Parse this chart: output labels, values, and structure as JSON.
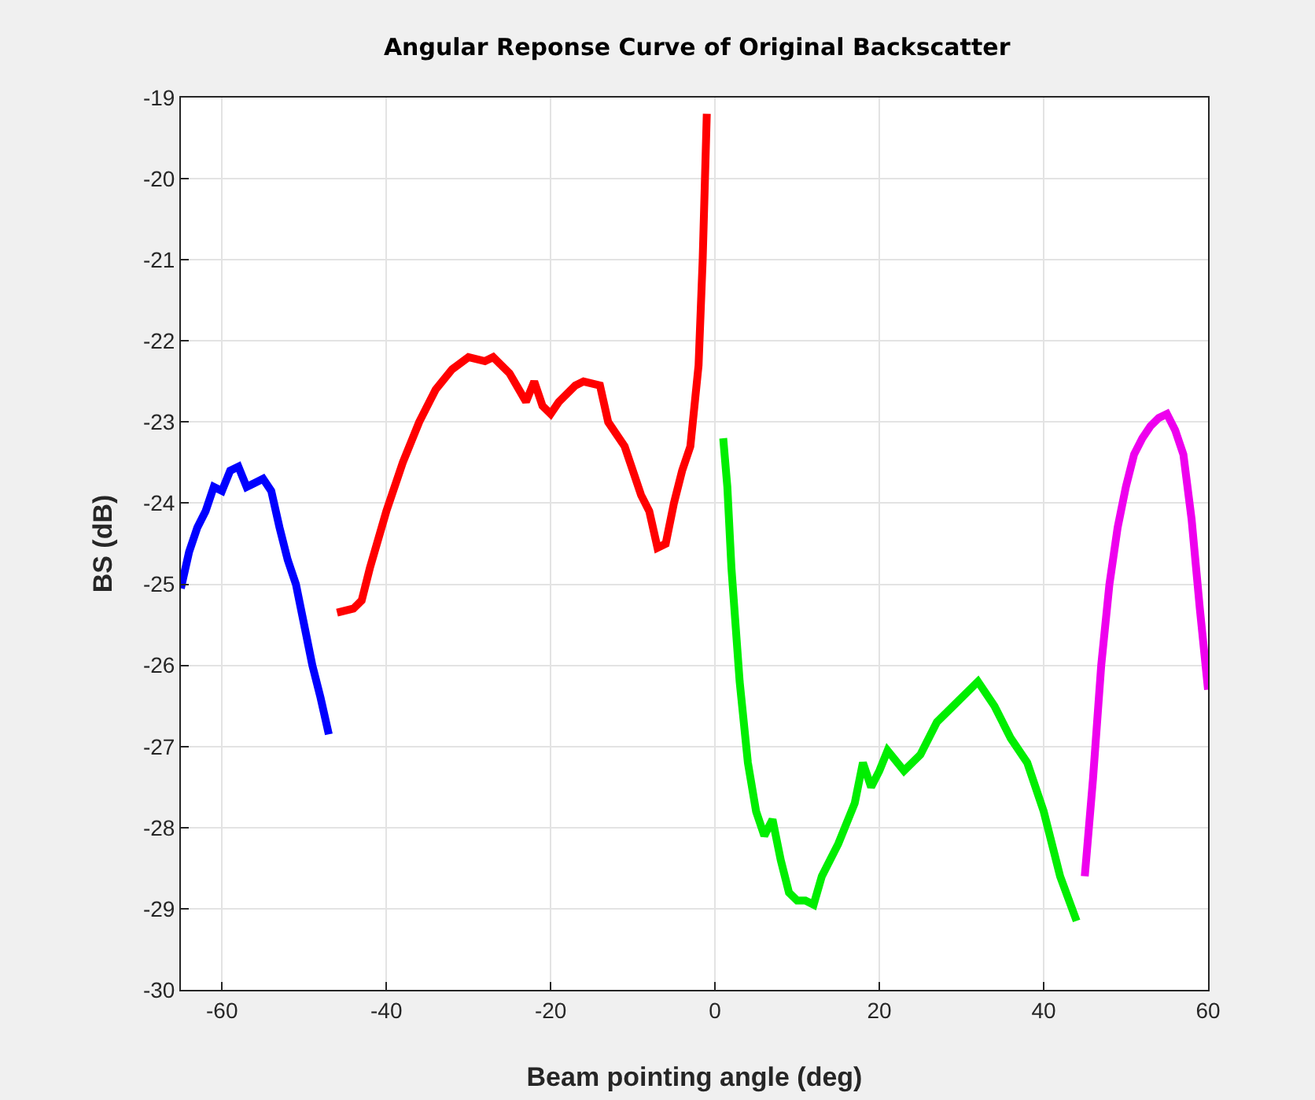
{
  "chart_data": {
    "type": "line",
    "title": "Angular Reponse Curve of Original Backscatter",
    "xlabel": "Beam pointing angle (deg)",
    "ylabel": "BS (dB)",
    "xlim": [
      -65,
      60
    ],
    "xticks": [
      -60,
      -40,
      -20,
      0,
      20,
      40,
      60
    ],
    "ylim": [
      -30,
      -19
    ],
    "yticks": [
      -30,
      -29,
      -28,
      -27,
      -26,
      -25,
      -24,
      -23,
      -22,
      -21,
      -20,
      -19
    ],
    "grid": true,
    "marker": "none",
    "line_style": "solid",
    "series": [
      {
        "color": "#0000ff",
        "x": [
          -65,
          -64,
          -63,
          -62,
          -61,
          -60,
          -59,
          -58,
          -57,
          -56,
          -55,
          -54,
          -53,
          -52,
          -51,
          -50,
          -49,
          -48,
          -47
        ],
        "values": [
          -25.05,
          -24.6,
          -24.3,
          -24.1,
          -23.8,
          -23.85,
          -23.6,
          -23.55,
          -23.8,
          -23.75,
          -23.7,
          -23.85,
          -24.3,
          -24.7,
          -25.0,
          -25.5,
          -26.0,
          -26.4,
          -26.85
        ]
      },
      {
        "color": "#ff0000",
        "x": [
          -46,
          -44,
          -43,
          -42,
          -40,
          -38,
          -36,
          -34,
          -32,
          -30,
          -28,
          -27,
          -25,
          -23,
          -22,
          -21,
          -20,
          -19,
          -17,
          -16,
          -14,
          -13,
          -11,
          -10,
          -9,
          -8,
          -7,
          -6,
          -5,
          -4,
          -3,
          -2,
          -1.5,
          -1
        ],
        "values": [
          -25.35,
          -25.3,
          -25.2,
          -24.8,
          -24.1,
          -23.5,
          -23.0,
          -22.6,
          -22.35,
          -22.2,
          -22.25,
          -22.2,
          -22.4,
          -22.75,
          -22.5,
          -22.8,
          -22.9,
          -22.75,
          -22.55,
          -22.5,
          -22.55,
          -23.0,
          -23.3,
          -23.6,
          -23.9,
          -24.1,
          -24.55,
          -24.5,
          -24.0,
          -23.6,
          -23.3,
          -22.3,
          -21.0,
          -19.2
        ]
      },
      {
        "color": "#00ee00",
        "x": [
          1,
          1.5,
          2,
          3,
          4,
          5,
          6,
          7,
          8,
          9,
          10,
          11,
          12,
          13,
          15,
          17,
          18,
          19,
          20,
          21,
          23,
          25,
          27,
          29,
          31,
          32,
          34,
          36,
          38,
          40,
          42,
          44
        ],
        "values": [
          -23.2,
          -23.8,
          -24.8,
          -26.2,
          -27.2,
          -27.8,
          -28.1,
          -27.9,
          -28.4,
          -28.8,
          -28.9,
          -28.9,
          -28.95,
          -28.6,
          -28.2,
          -27.7,
          -27.2,
          -27.5,
          -27.3,
          -27.05,
          -27.3,
          -27.1,
          -26.7,
          -26.5,
          -26.3,
          -26.2,
          -26.5,
          -26.9,
          -27.2,
          -27.8,
          -28.6,
          -29.15
        ]
      },
      {
        "color": "#ee00ee",
        "x": [
          45,
          46,
          47,
          48,
          49,
          50,
          51,
          52,
          53,
          54,
          55,
          56,
          57,
          58,
          59,
          60
        ],
        "values": [
          -28.6,
          -27.4,
          -26.0,
          -25.0,
          -24.3,
          -23.8,
          -23.4,
          -23.2,
          -23.05,
          -22.95,
          -22.9,
          -23.1,
          -23.4,
          -24.2,
          -25.3,
          -26.3
        ]
      }
    ]
  }
}
